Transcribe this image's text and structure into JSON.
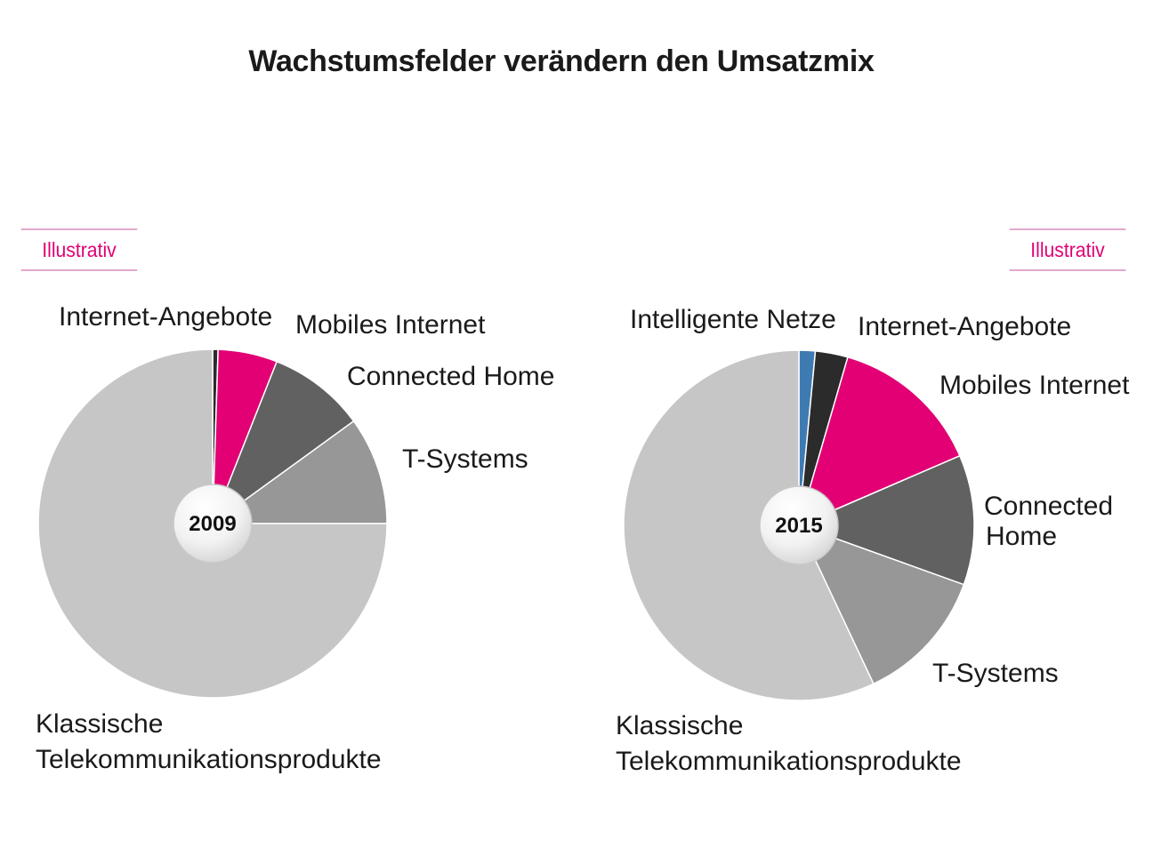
{
  "title": "Wachstumsfelder verändern den Umsatzmix",
  "badge": "Illustrativ",
  "colors": {
    "accent": "#e20074",
    "klassische": "#c6c6c6",
    "t_systems": "#979797",
    "connected_home": "#616161",
    "mobiles_internet": "#e20074",
    "internet_angebote": "#2b2b2b",
    "intelligente_netze": "#3f7bb3"
  },
  "chart_data": [
    {
      "type": "pie",
      "center_label": "2009",
      "start_angle_deg": 0,
      "slices": [
        {
          "label": "Internet-Angebote",
          "value": 0.5,
          "color": "#2b2b2b"
        },
        {
          "label": "Mobiles Internet",
          "value": 5.5,
          "color": "#e20074"
        },
        {
          "label": "Connected Home",
          "value": 9,
          "color": "#616161"
        },
        {
          "label": "T-Systems",
          "value": 10,
          "color": "#979797"
        },
        {
          "label": "Klassische Telekommunikationsprodukte",
          "value": 75,
          "color": "#c6c6c6"
        }
      ]
    },
    {
      "type": "pie",
      "center_label": "2015",
      "start_angle_deg": 0,
      "slices": [
        {
          "label": "Intelligente Netze",
          "value": 1.5,
          "color": "#3f7bb3"
        },
        {
          "label": "Internet-Angebote",
          "value": 3,
          "color": "#2b2b2b"
        },
        {
          "label": "Mobiles Internet",
          "value": 14,
          "color": "#e20074"
        },
        {
          "label": "Connected Home",
          "value": 12,
          "color": "#616161"
        },
        {
          "label": "T-Systems",
          "value": 12.5,
          "color": "#979797"
        },
        {
          "label": "Klassische Telekommunikationsprodukte",
          "value": 57,
          "color": "#c6c6c6"
        }
      ]
    }
  ],
  "labels_2009": {
    "internet_angebote": "Internet-Angebote",
    "mobiles_internet": "Mobiles Internet",
    "connected_home": "Connected Home",
    "t_systems": "T-Systems",
    "klassische_line1": "Klassische",
    "klassische_line2": "Telekommunikationsprodukte"
  },
  "labels_2015": {
    "intelligente_netze": "Intelligente Netze",
    "internet_angebote": "Internet-Angebote",
    "mobiles_internet": "Mobiles Internet",
    "connected_home_line1": "Connected",
    "connected_home_line2": "Home",
    "t_systems": "T-Systems",
    "klassische_line1": "Klassische",
    "klassische_line2": "Telekommunikationsprodukte"
  }
}
